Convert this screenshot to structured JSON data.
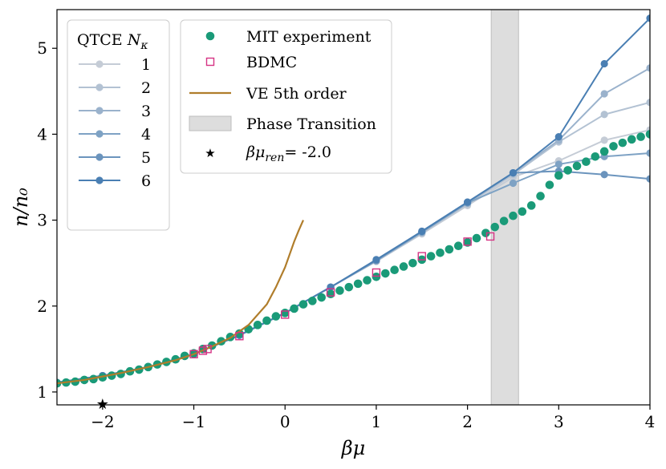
{
  "chart_data": {
    "type": "line",
    "xlabel": "βμ",
    "ylabel": "n/n₀",
    "xlim": [
      -2.5,
      4
    ],
    "ylim": [
      0.85,
      5.45
    ],
    "xticks": [
      -2,
      -1,
      0,
      1,
      2,
      3,
      4
    ],
    "xtick_labels": [
      "−2",
      "−1",
      "0",
      "1",
      "2",
      "3",
      "4"
    ],
    "yticks": [
      1,
      2,
      3,
      4,
      5
    ],
    "ytick_labels": [
      "1",
      "2",
      "3",
      "4",
      "5"
    ],
    "qtce_legend_title": "QTCE N_κ",
    "qtce_series": [
      {
        "name": "1",
        "color": "#c5ccd6",
        "x": [
          -2.5,
          -2,
          -1.5,
          -1,
          -0.5,
          0,
          0.5,
          1,
          1.5,
          2,
          2.5,
          3,
          3.5,
          4
        ],
        "y": [
          1.11,
          1.19,
          1.29,
          1.44,
          1.66,
          1.92,
          2.22,
          2.52,
          2.84,
          3.17,
          3.5,
          3.69,
          3.93,
          4.05
        ]
      },
      {
        "name": "2",
        "color": "#b3c2d3",
        "x": [
          -2.5,
          -2,
          -1.5,
          -1,
          -0.5,
          0,
          0.5,
          1,
          1.5,
          2,
          2.5,
          3,
          3.5,
          4
        ],
        "y": [
          1.11,
          1.19,
          1.29,
          1.44,
          1.66,
          1.92,
          2.22,
          2.52,
          2.85,
          3.19,
          3.53,
          3.91,
          4.23,
          4.37
        ]
      },
      {
        "name": "3",
        "color": "#9ab2cc",
        "x": [
          -2.5,
          -2,
          -1.5,
          -1,
          -0.5,
          0,
          0.5,
          1,
          1.5,
          2,
          2.5,
          3,
          3.5,
          4
        ],
        "y": [
          1.11,
          1.19,
          1.29,
          1.44,
          1.66,
          1.92,
          2.22,
          2.53,
          2.86,
          3.2,
          3.55,
          3.93,
          4.47,
          4.77
        ]
      },
      {
        "name": "4",
        "color": "#7ea2c4",
        "x": [
          -2.5,
          -2,
          -1.5,
          -1,
          -0.5,
          0,
          0.5,
          1,
          1.5,
          2,
          2.5,
          3,
          3.5,
          4
        ],
        "y": [
          1.11,
          1.19,
          1.29,
          1.44,
          1.66,
          1.92,
          2.22,
          2.53,
          2.86,
          3.2,
          3.43,
          3.65,
          3.74,
          3.78
        ]
      },
      {
        "name": "5",
        "color": "#6b94bd",
        "x": [
          -2.5,
          -2,
          -1.5,
          -1,
          -0.5,
          0,
          0.5,
          1,
          1.5,
          2,
          2.5,
          3,
          3.5,
          4
        ],
        "y": [
          1.11,
          1.19,
          1.29,
          1.44,
          1.66,
          1.92,
          2.22,
          2.53,
          2.87,
          3.21,
          3.55,
          3.57,
          3.53,
          3.48
        ]
      },
      {
        "name": "6",
        "color": "#4a7fb3",
        "x": [
          -2.5,
          -2,
          -1.5,
          -1,
          -0.5,
          0,
          0.5,
          1,
          1.5,
          2,
          2.5,
          3,
          3.5,
          4
        ],
        "y": [
          1.11,
          1.19,
          1.29,
          1.44,
          1.66,
          1.92,
          2.22,
          2.54,
          2.87,
          3.21,
          3.55,
          3.97,
          4.82,
          5.35
        ]
      }
    ],
    "mit_experiment": {
      "name": "MIT experiment",
      "color": "#1a9a78",
      "x": [
        -2.5,
        -2.4,
        -2.3,
        -2.2,
        -2.1,
        -2.0,
        -1.9,
        -1.8,
        -1.7,
        -1.6,
        -1.5,
        -1.4,
        -1.3,
        -1.2,
        -1.1,
        -1.0,
        -0.9,
        -0.8,
        -0.7,
        -0.6,
        -0.5,
        -0.4,
        -0.3,
        -0.2,
        -0.1,
        0.0,
        0.1,
        0.2,
        0.3,
        0.4,
        0.5,
        0.6,
        0.7,
        0.8,
        0.9,
        1.0,
        1.1,
        1.2,
        1.3,
        1.4,
        1.5,
        1.6,
        1.7,
        1.8,
        1.9,
        2.0,
        2.1,
        2.2,
        2.3,
        2.4,
        2.5,
        2.6,
        2.7,
        2.8,
        2.9,
        3.0,
        3.1,
        3.2,
        3.3,
        3.4,
        3.5,
        3.6,
        3.7,
        3.8,
        3.9,
        4.0
      ],
      "y": [
        1.1,
        1.11,
        1.12,
        1.14,
        1.15,
        1.17,
        1.19,
        1.21,
        1.24,
        1.26,
        1.29,
        1.32,
        1.35,
        1.38,
        1.42,
        1.45,
        1.5,
        1.54,
        1.59,
        1.64,
        1.68,
        1.73,
        1.78,
        1.83,
        1.88,
        1.92,
        1.97,
        2.02,
        2.06,
        2.1,
        2.14,
        2.18,
        2.22,
        2.26,
        2.3,
        2.34,
        2.38,
        2.42,
        2.46,
        2.5,
        2.54,
        2.58,
        2.62,
        2.66,
        2.7,
        2.74,
        2.79,
        2.85,
        2.92,
        2.99,
        3.05,
        3.1,
        3.17,
        3.28,
        3.41,
        3.52,
        3.58,
        3.63,
        3.68,
        3.74,
        3.8,
        3.86,
        3.9,
        3.94,
        3.97,
        4.0
      ]
    },
    "bdmc": {
      "name": "BDMC",
      "color": "#d63384",
      "x": [
        -1.0,
        -0.9,
        -0.85,
        -0.5,
        0.0,
        0.5,
        1.0,
        1.5,
        2.0,
        2.25
      ],
      "y": [
        1.44,
        1.48,
        1.5,
        1.65,
        1.9,
        2.16,
        2.39,
        2.58,
        2.75,
        2.81
      ]
    },
    "ve_5th_order": {
      "name": "VE 5th order",
      "color": "#b07d2b",
      "x": [
        -2.5,
        -2.2,
        -2.0,
        -1.8,
        -1.5,
        -1.2,
        -1.0,
        -0.8,
        -0.6,
        -0.4,
        -0.2,
        -0.1,
        0.0,
        0.05,
        0.1,
        0.15,
        0.2
      ],
      "y": [
        1.1,
        1.14,
        1.18,
        1.22,
        1.29,
        1.37,
        1.44,
        1.53,
        1.63,
        1.78,
        2.02,
        2.22,
        2.45,
        2.6,
        2.75,
        2.88,
        3.0
      ]
    },
    "phase_transition": {
      "name": "Phase Transition",
      "x_range": [
        2.26,
        2.56
      ],
      "color": "#dddddd"
    },
    "star_marker": {
      "label": "βμ_ren= -2.0",
      "x": -2.0,
      "y": 0.86
    },
    "legend_qtce_placement": "top-left",
    "legend_main_placement": "top-center",
    "main_legend": {
      "mit_label": "MIT experiment",
      "bdmc_label": "BDMC",
      "ve_label": "VE 5th order",
      "phase_label": "Phase Transition",
      "star_label_prefix": "βμ",
      "star_label_sub": "ren",
      "star_label_suffix": "= -2.0"
    }
  }
}
